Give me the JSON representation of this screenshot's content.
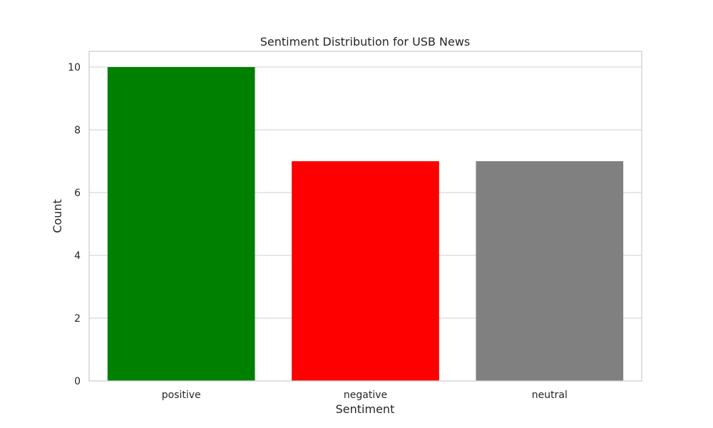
{
  "chart_data": {
    "type": "bar",
    "title": "Sentiment Distribution for USB News",
    "xlabel": "Sentiment",
    "ylabel": "Count",
    "categories": [
      "positive",
      "negative",
      "neutral"
    ],
    "values": [
      10,
      7,
      7
    ],
    "colors": [
      "#008000",
      "#ff0000",
      "#808080"
    ],
    "ylim": [
      0,
      10.5
    ],
    "yticks": [
      0,
      2,
      4,
      6,
      8,
      10
    ],
    "grid": true,
    "style": {
      "grid_color": "#cccccc",
      "spine_color": "#cccccc",
      "text_color": "#262626",
      "background": "#ffffff"
    }
  }
}
